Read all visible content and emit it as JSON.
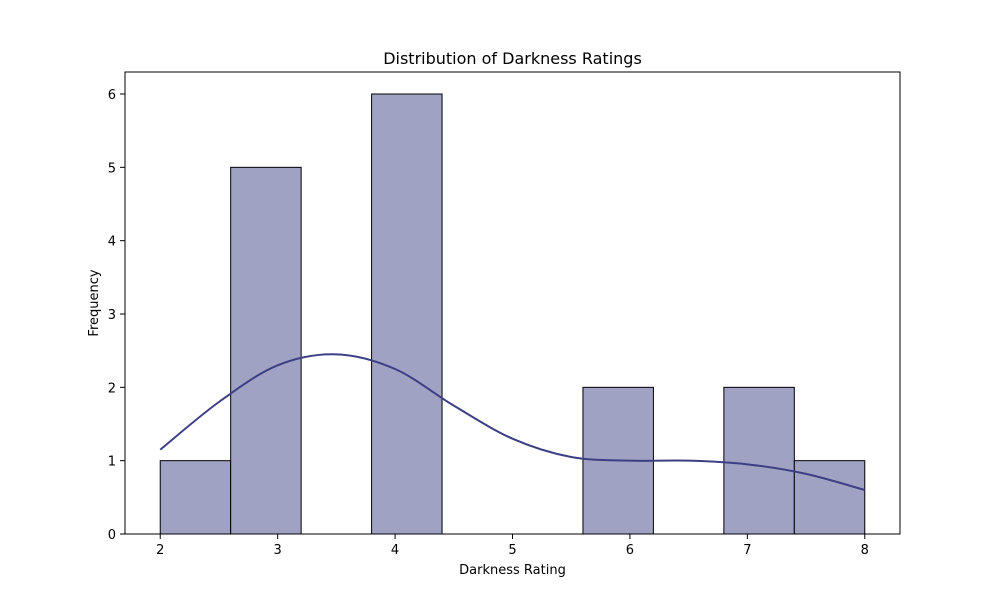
{
  "chart_data": {
    "type": "bar",
    "title": "Distribution of Darkness Ratings",
    "xlabel": "Darkness Rating",
    "ylabel": "Frequency",
    "xlim": [
      1.7,
      8.3
    ],
    "ylim": [
      0,
      6.3
    ],
    "xticks": [
      "2",
      "3",
      "4",
      "5",
      "6",
      "7",
      "8"
    ],
    "yticks": [
      "0",
      "1",
      "2",
      "3",
      "4",
      "5",
      "6"
    ],
    "bins": [
      {
        "x0": 2.0,
        "x1": 2.6,
        "value": 1
      },
      {
        "x0": 2.6,
        "x1": 3.2,
        "value": 5
      },
      {
        "x0": 3.2,
        "x1": 3.8,
        "value": 0
      },
      {
        "x0": 3.8,
        "x1": 4.4,
        "value": 6
      },
      {
        "x0": 4.4,
        "x1": 5.0,
        "value": 0
      },
      {
        "x0": 5.0,
        "x1": 5.6,
        "value": 0
      },
      {
        "x0": 5.6,
        "x1": 6.2,
        "value": 2
      },
      {
        "x0": 6.2,
        "x1": 6.8,
        "value": 0
      },
      {
        "x0": 6.8,
        "x1": 7.4,
        "value": 2
      },
      {
        "x0": 7.4,
        "x1": 8.0,
        "value": 1
      }
    ],
    "kde": {
      "x": [
        2.0,
        2.5,
        3.0,
        3.5,
        4.0,
        4.5,
        5.0,
        5.5,
        6.0,
        6.5,
        7.0,
        7.5,
        8.0
      ],
      "y": [
        1.15,
        1.8,
        2.3,
        2.45,
        2.25,
        1.75,
        1.3,
        1.05,
        1.0,
        1.0,
        0.95,
        0.82,
        0.6
      ]
    },
    "colors": {
      "bar_fill": "#a0a2c3",
      "bar_stroke": "#000000",
      "kde_line": "#3d3f85"
    },
    "grid": false,
    "legend": "none"
  }
}
